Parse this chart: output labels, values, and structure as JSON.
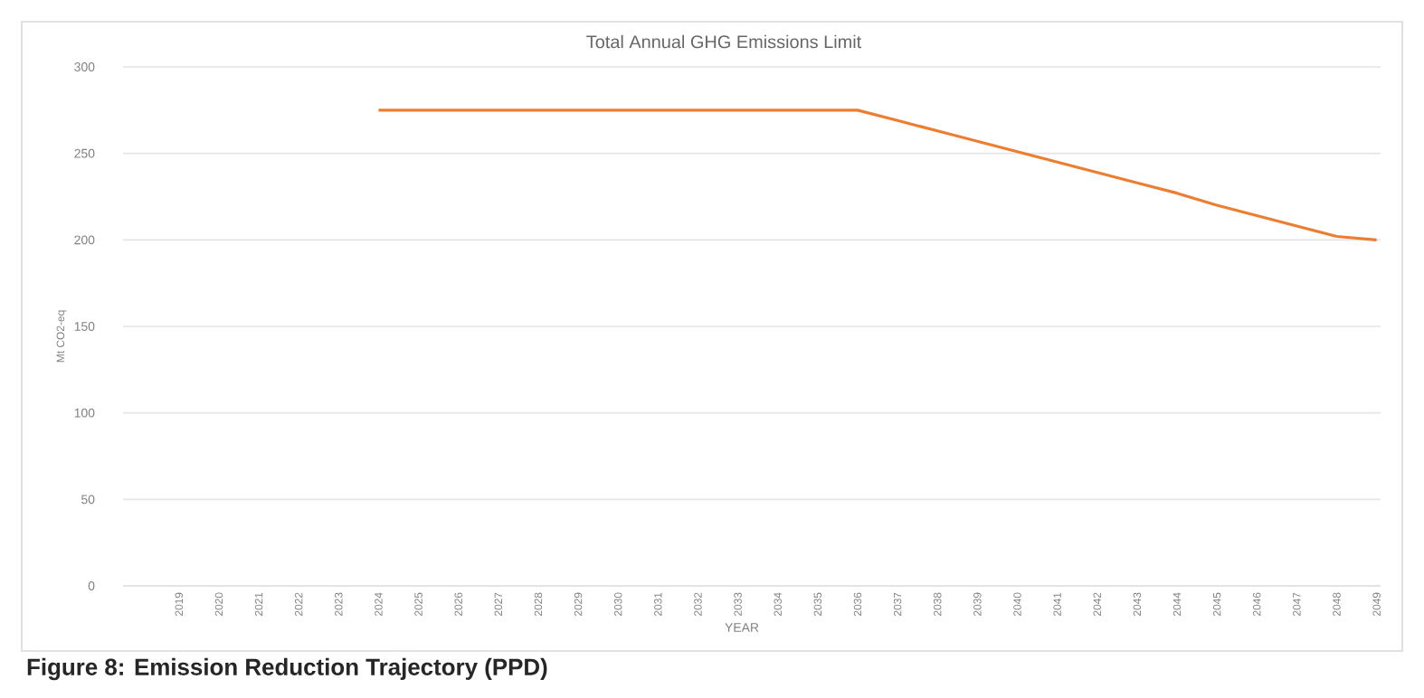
{
  "chart_data": {
    "type": "line",
    "title": "Total Annual GHG Emissions Limit",
    "xlabel": "YEAR",
    "ylabel": "Mt CO2-eq",
    "categories": [
      "2019",
      "2020",
      "2021",
      "2022",
      "2023",
      "2024",
      "2025",
      "2026",
      "2027",
      "2028",
      "2029",
      "2030",
      "2031",
      "2032",
      "2033",
      "2034",
      "2035",
      "2036",
      "2037",
      "2038",
      "2039",
      "2040",
      "2041",
      "2042",
      "2043",
      "2044",
      "2045",
      "2046",
      "2047",
      "2048",
      "2049"
    ],
    "series": [
      {
        "color": "#ed7d31",
        "values": [
          null,
          null,
          null,
          null,
          null,
          275,
          275,
          275,
          275,
          275,
          275,
          275,
          275,
          275,
          275,
          275,
          275,
          275,
          269,
          263,
          257,
          251,
          245,
          239,
          233,
          227,
          220,
          214,
          208,
          202,
          200
        ]
      }
    ],
    "ylim": [
      0,
      300
    ],
    "yticks": [
      0,
      50,
      100,
      150,
      200,
      250,
      300
    ],
    "grid": "y",
    "marker": "none",
    "line_style": "solid",
    "annotations": [
      "Figure 8: Emission Reduction Trajectory (PPD)"
    ]
  }
}
